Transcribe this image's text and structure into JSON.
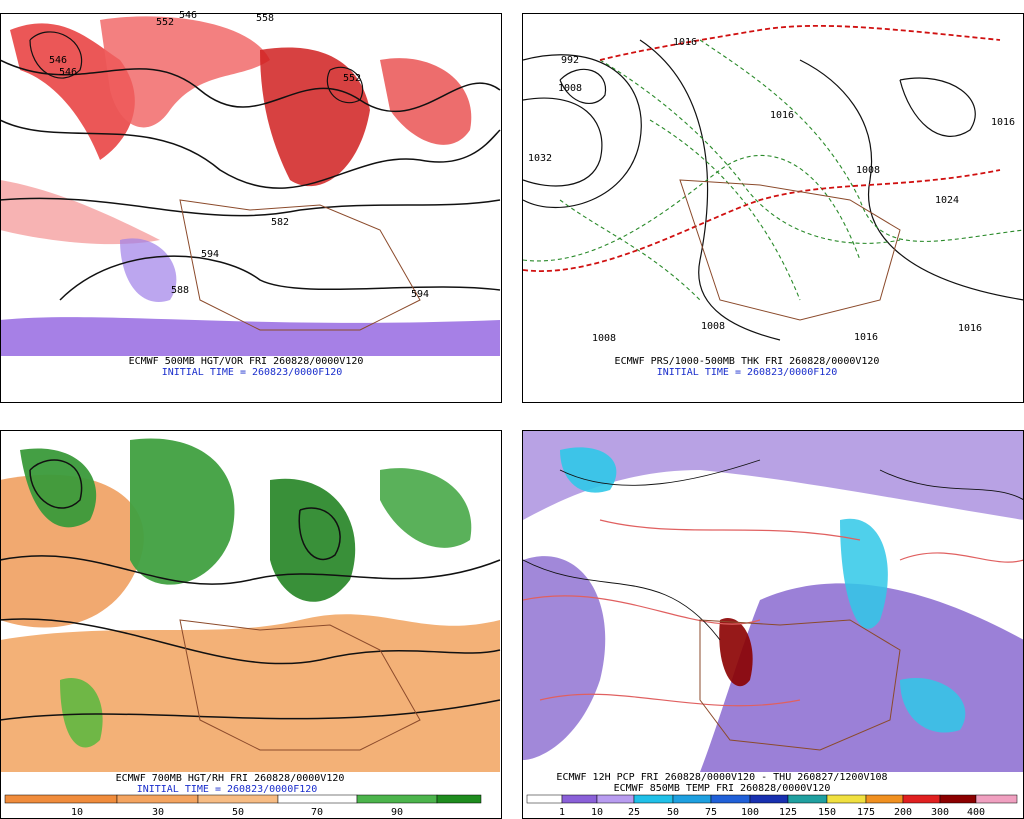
{
  "panels": [
    {
      "caption": "ECMWF 500MB HGT/VOR FRI 260828/0000V120",
      "initial_time": "INITIAL TIME = 260823/0000F120",
      "labels": [
        "546",
        "546",
        "552",
        "546",
        "558",
        "552",
        "582",
        "594",
        "588",
        "594"
      ]
    },
    {
      "caption": "ECMWF PRS/1000-500MB THK FRI 260828/0000V120",
      "initial_time": "INITIAL TIME = 260823/0000F120",
      "labels": [
        "1016",
        "992",
        "1008",
        "1032",
        "1016",
        "1008",
        "1016",
        "1008",
        "1024",
        "1008",
        "1016",
        "1016"
      ]
    },
    {
      "caption": "ECMWF 700MB HGT/RH FRI 260828/0000V120",
      "initial_time": "INITIAL TIME = 260823/0000F120",
      "colorbar": [
        10,
        30,
        50,
        70,
        90
      ]
    },
    {
      "caption": "ECMWF 12H PCP FRI 260828/0000V120 - THU 260827/1200V108",
      "subtitle": "ECMWF 850MB TEMP FRI 260828/0000V120",
      "colorbar": [
        1,
        10,
        25,
        50,
        75,
        100,
        125,
        150,
        175,
        200,
        300,
        400
      ]
    }
  ]
}
